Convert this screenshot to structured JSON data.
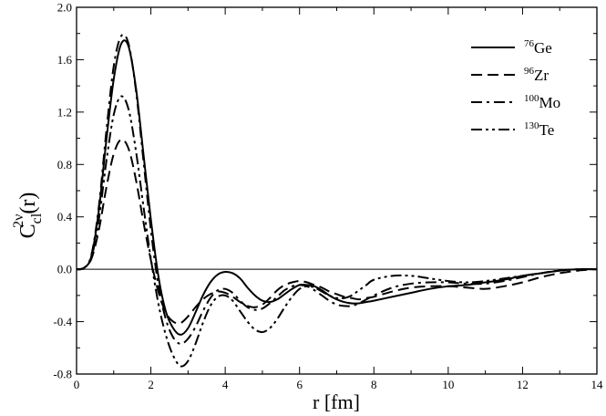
{
  "chart_data": {
    "type": "line",
    "title": "",
    "xlabel": "r [fm]",
    "ylabel": {
      "base": "C",
      "sup": "2ν",
      "sub": "cl",
      "tail": "(r)"
    },
    "xlim": [
      0,
      14
    ],
    "ylim": [
      -0.8,
      2.0
    ],
    "x_ticks": [
      0,
      2,
      4,
      6,
      8,
      10,
      12,
      14
    ],
    "x_tick_labels": [
      "0",
      "2",
      "4",
      "6",
      "8",
      "10",
      "12",
      "14"
    ],
    "y_ticks": [
      -0.8,
      -0.4,
      0.0,
      0.4,
      0.8,
      1.2,
      1.6,
      2.0
    ],
    "y_tick_labels": [
      "-0.8",
      "-0.4",
      "0.0",
      "0.4",
      "0.8",
      "1.2",
      "1.6",
      "2.0"
    ],
    "grid": false,
    "zero_line": true,
    "legend_position": "top-right",
    "x": [
      0,
      0.2,
      0.4,
      0.6,
      0.8,
      1.0,
      1.2,
      1.4,
      1.6,
      1.8,
      2.0,
      2.2,
      2.4,
      2.6,
      2.8,
      3.0,
      3.2,
      3.4,
      3.6,
      3.8,
      4.0,
      4.2,
      4.4,
      4.6,
      4.8,
      5.0,
      5.2,
      5.4,
      5.6,
      5.8,
      6.0,
      6.2,
      6.4,
      6.6,
      6.8,
      7.0,
      7.2,
      7.4,
      7.6,
      7.8,
      8.0,
      8.5,
      9.0,
      9.5,
      10.0,
      10.5,
      11.0,
      11.5,
      12.0,
      12.5,
      13.0,
      13.5,
      14.0
    ],
    "series": [
      {
        "name": {
          "mass": "76",
          "element": "Ge"
        },
        "dash": "solid",
        "values": [
          0,
          0.01,
          0.1,
          0.45,
          0.98,
          1.45,
          1.72,
          1.7,
          1.38,
          0.88,
          0.38,
          -0.05,
          -0.32,
          -0.45,
          -0.5,
          -0.45,
          -0.33,
          -0.2,
          -0.1,
          -0.04,
          -0.02,
          -0.03,
          -0.07,
          -0.14,
          -0.2,
          -0.24,
          -0.25,
          -0.23,
          -0.19,
          -0.15,
          -0.12,
          -0.12,
          -0.13,
          -0.16,
          -0.2,
          -0.23,
          -0.25,
          -0.26,
          -0.26,
          -0.25,
          -0.24,
          -0.21,
          -0.18,
          -0.15,
          -0.13,
          -0.12,
          -0.1,
          -0.08,
          -0.05,
          -0.03,
          -0.01,
          0.0,
          0.0
        ]
      },
      {
        "name": {
          "mass": "96",
          "element": "Zr"
        },
        "dash": "dashed",
        "values": [
          0,
          0.01,
          0.08,
          0.3,
          0.62,
          0.88,
          0.99,
          0.92,
          0.68,
          0.36,
          0.07,
          -0.17,
          -0.33,
          -0.4,
          -0.41,
          -0.36,
          -0.29,
          -0.23,
          -0.19,
          -0.17,
          -0.18,
          -0.21,
          -0.25,
          -0.28,
          -0.29,
          -0.27,
          -0.22,
          -0.16,
          -0.12,
          -0.1,
          -0.09,
          -0.1,
          -0.12,
          -0.14,
          -0.17,
          -0.19,
          -0.21,
          -0.22,
          -0.23,
          -0.22,
          -0.21,
          -0.17,
          -0.14,
          -0.13,
          -0.13,
          -0.14,
          -0.15,
          -0.13,
          -0.1,
          -0.06,
          -0.03,
          -0.01,
          0.0
        ]
      },
      {
        "name": {
          "mass": "100",
          "element": "Mo"
        },
        "dash": "dashdot",
        "values": [
          0,
          0.01,
          0.11,
          0.48,
          1.05,
          1.55,
          1.78,
          1.72,
          1.36,
          0.83,
          0.3,
          -0.12,
          -0.38,
          -0.52,
          -0.57,
          -0.53,
          -0.44,
          -0.32,
          -0.22,
          -0.16,
          -0.15,
          -0.18,
          -0.24,
          -0.29,
          -0.31,
          -0.3,
          -0.26,
          -0.21,
          -0.16,
          -0.13,
          -0.12,
          -0.13,
          -0.16,
          -0.2,
          -0.24,
          -0.27,
          -0.28,
          -0.28,
          -0.26,
          -0.23,
          -0.2,
          -0.14,
          -0.11,
          -0.1,
          -0.1,
          -0.11,
          -0.11,
          -0.09,
          -0.06,
          -0.03,
          -0.01,
          0.0,
          0.0
        ]
      },
      {
        "name": {
          "mass": "130",
          "element": "Te"
        },
        "dash": "dashdotdot",
        "values": [
          0,
          0.01,
          0.09,
          0.38,
          0.82,
          1.18,
          1.32,
          1.22,
          0.9,
          0.48,
          0.08,
          -0.26,
          -0.5,
          -0.66,
          -0.74,
          -0.7,
          -0.57,
          -0.41,
          -0.28,
          -0.21,
          -0.2,
          -0.24,
          -0.32,
          -0.4,
          -0.46,
          -0.48,
          -0.45,
          -0.38,
          -0.29,
          -0.21,
          -0.15,
          -0.13,
          -0.14,
          -0.17,
          -0.2,
          -0.22,
          -0.22,
          -0.2,
          -0.16,
          -0.12,
          -0.08,
          -0.05,
          -0.05,
          -0.07,
          -0.09,
          -0.1,
          -0.09,
          -0.07,
          -0.05,
          -0.03,
          -0.01,
          0.0,
          0.0
        ]
      }
    ]
  }
}
